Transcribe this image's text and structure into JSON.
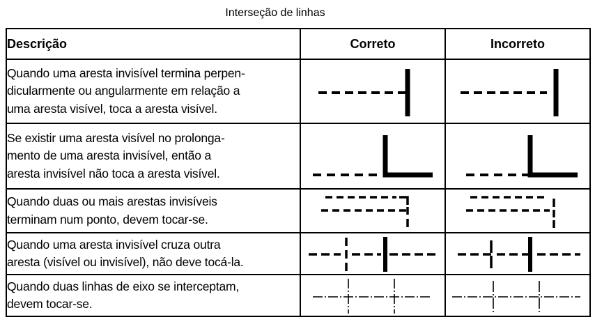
{
  "title": "Interseção de linhas",
  "colors": {
    "border": "#000000",
    "text": "#000000",
    "line": "#000000",
    "background": "#ffffff"
  },
  "table": {
    "headers": {
      "description": "Descrição",
      "correct": "Correto",
      "incorrect": "Incorreto"
    },
    "rows": [
      {
        "description": "Quando uma aresta invisível termina perpen-\ndicularmente ou angularmente em relação a\numa aresta visível, toca a aresta visível.",
        "correct_diagram": "hidden-line-touches-visible-edge",
        "incorrect_diagram": "hidden-line-gap-before-visible-edge"
      },
      {
        "description": "Se existir uma aresta visível no prolonga-\nmento de uma aresta invisível, então a\naresta invisível não toca a aresta visível.",
        "correct_diagram": "hidden-line-gap-at-corner",
        "incorrect_diagram": "hidden-line-touches-corner"
      },
      {
        "description": "Quando duas ou mais arestas invisíveis\nterminam num ponto, devem tocar-se.",
        "correct_diagram": "hidden-lines-meet-at-point",
        "incorrect_diagram": "hidden-lines-gap-at-point"
      },
      {
        "description": "Quando uma aresta invisível cruza outra\naresta (visível ou invisível), não deve tocá-la.",
        "correct_diagram": "hidden-line-crosses-without-touching",
        "incorrect_diagram": "hidden-line-crosses-touching"
      },
      {
        "description": "Quando duas linhas de eixo se interceptam,\ndevem tocar-se.",
        "correct_diagram": "centerlines-cross-at-dashes",
        "incorrect_diagram": "centerlines-cross-at-gaps"
      }
    ]
  }
}
